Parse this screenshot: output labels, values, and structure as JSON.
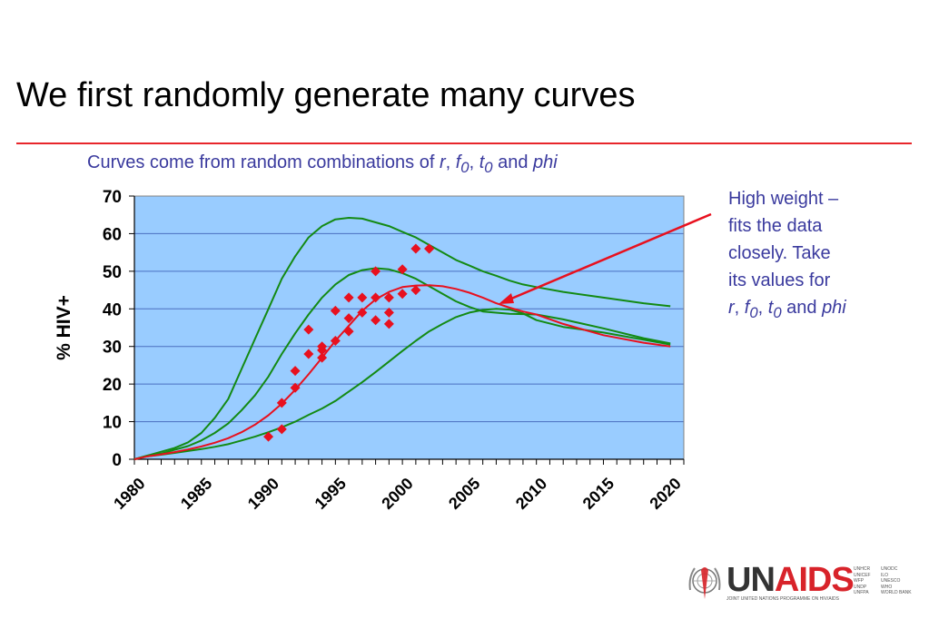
{
  "slide": {
    "title": "We first randomly generate many curves",
    "subtitle": {
      "lead": "Curves come from random combinations of ",
      "r": "r",
      "sep1": ", ",
      "f": "f",
      "f_sub": "0",
      "sep2": ", ",
      "t": "t",
      "t_sub": "0",
      "and": " and ",
      "phi": "phi"
    },
    "annotation": {
      "line1": "High weight –",
      "line2": "fits the data",
      "line3": "closely. Take",
      "line4": "its values for",
      "r": "r",
      "sep1": ", ",
      "f": "f",
      "f_sub": "0",
      "sep2": ", ",
      "t": "t",
      "t_sub": "0",
      "and": " and ",
      "phi": "phi"
    },
    "logo": {
      "un": "UN",
      "aids": "AIDS",
      "caption": "JOINT UNITED NATIONS PROGRAMME ON HIV/AIDS",
      "members_col1": "UNHCR\nUNICEF\nWFP\nUNDP\nUNFPA",
      "members_col2": "UNODC\nILO\nUNESCO\nWHO\nWORLD BANK"
    }
  },
  "colors": {
    "plot_bg": "#99ccff",
    "gridline": "#4a6fc0",
    "green_curve": "#138a13",
    "red_curve": "#e8101e",
    "data_points": "#e8101e",
    "arrow": "#e8101e",
    "text_blue": "#3a3a9e"
  },
  "chart_data": {
    "type": "line",
    "title": "",
    "xlabel": "",
    "ylabel": "% HIV+",
    "xlim": [
      1980,
      2021
    ],
    "ylim": [
      0,
      70
    ],
    "y_ticks": [
      0,
      10,
      20,
      30,
      40,
      50,
      60,
      70
    ],
    "x_ticks": [
      1980,
      1985,
      1990,
      1995,
      2000,
      2005,
      2010,
      2015,
      2020
    ],
    "grid": true,
    "legend": "none",
    "series": [
      {
        "kind": "green",
        "x": [
          1980,
          1981,
          1982,
          1983,
          1984,
          1985,
          1986,
          1987,
          1988,
          1989,
          1990,
          1991,
          1992,
          1993,
          1994,
          1995,
          1996,
          1997,
          1998,
          1999,
          2000,
          2001,
          2002,
          2003,
          2004,
          2005,
          2006,
          2007,
          2008,
          2009,
          2010,
          2012,
          2015,
          2018,
          2020
        ],
        "y": [
          0,
          1,
          2,
          3,
          4.5,
          7,
          11,
          16,
          24,
          32,
          40,
          48,
          54,
          59,
          62,
          63.8,
          64.2,
          64,
          63,
          62,
          60.5,
          59,
          57,
          55,
          53,
          51.5,
          50,
          48.8,
          47.5,
          46.5,
          45.8,
          44.5,
          43,
          41.5,
          40.7
        ]
      },
      {
        "kind": "green",
        "x": [
          1980,
          1981,
          1982,
          1983,
          1984,
          1985,
          1986,
          1987,
          1988,
          1989,
          1990,
          1991,
          1992,
          1993,
          1994,
          1995,
          1996,
          1997,
          1998,
          1999,
          2000,
          2001,
          2002,
          2003,
          2004,
          2005,
          2006,
          2008,
          2010,
          2012,
          2015,
          2018,
          2020
        ],
        "y": [
          0,
          1,
          1.5,
          2.5,
          3.5,
          5,
          7,
          9.5,
          13,
          17,
          22,
          28,
          33.5,
          38.5,
          43,
          46.5,
          49,
          50.3,
          50.8,
          50.5,
          49.5,
          48,
          46,
          44,
          42,
          40.5,
          39.3,
          38.7,
          38.5,
          37.2,
          34.8,
          32.2,
          30.8
        ]
      },
      {
        "kind": "green",
        "x": [
          1980,
          1981,
          1982,
          1983,
          1984,
          1985,
          1986,
          1987,
          1988,
          1989,
          1990,
          1991,
          1992,
          1993,
          1994,
          1995,
          1996,
          1997,
          1998,
          1999,
          2000,
          2001,
          2002,
          2003,
          2004,
          2005,
          2006,
          2007,
          2008,
          2009,
          2010,
          2012,
          2015,
          2018,
          2020
        ],
        "y": [
          0,
          0.8,
          1.2,
          1.7,
          2.2,
          2.7,
          3.3,
          4,
          5,
          6,
          7.2,
          8.5,
          10,
          11.8,
          13.5,
          15.5,
          18,
          20.5,
          23.2,
          26,
          28.8,
          31.5,
          34,
          36,
          37.8,
          39,
          39.7,
          40,
          39.8,
          38.8,
          37,
          35.2,
          33.7,
          31.8,
          30.5
        ]
      },
      {
        "kind": "red",
        "x": [
          1980,
          1981,
          1982,
          1983,
          1984,
          1985,
          1986,
          1987,
          1988,
          1989,
          1990,
          1991,
          1992,
          1993,
          1994,
          1995,
          1996,
          1997,
          1998,
          1999,
          2000,
          2001,
          2002,
          2003,
          2004,
          2005,
          2006,
          2007,
          2008,
          2009,
          2010,
          2012,
          2015,
          2018,
          2020
        ],
        "y": [
          0,
          0.8,
          1.3,
          1.9,
          2.6,
          3.4,
          4.4,
          5.6,
          7.2,
          9.2,
          11.7,
          14.8,
          18.5,
          22.6,
          27,
          31.5,
          35.5,
          39.5,
          42.5,
          44.5,
          45.8,
          46.2,
          46.3,
          46,
          45.3,
          44.3,
          43,
          41.5,
          40.3,
          39.3,
          38.5,
          36,
          33,
          31,
          30
        ]
      }
    ],
    "points": {
      "x": [
        1990,
        1991,
        1991,
        1992,
        1992,
        1993,
        1993,
        1994,
        1994,
        1994,
        1995,
        1995,
        1996,
        1996,
        1996,
        1997,
        1997,
        1998,
        1998,
        1998,
        1999,
        1999,
        1999,
        2000,
        2000,
        2001,
        2001,
        2002,
        2002
      ],
      "y": [
        6,
        8,
        15,
        19,
        23.5,
        28,
        34.5,
        27,
        29,
        30,
        31.5,
        39.5,
        34,
        37.5,
        43,
        39,
        43,
        37,
        43,
        50,
        36,
        43,
        39,
        44,
        50.5,
        45,
        56,
        56,
        56
      ]
    },
    "points_note": ""
  }
}
